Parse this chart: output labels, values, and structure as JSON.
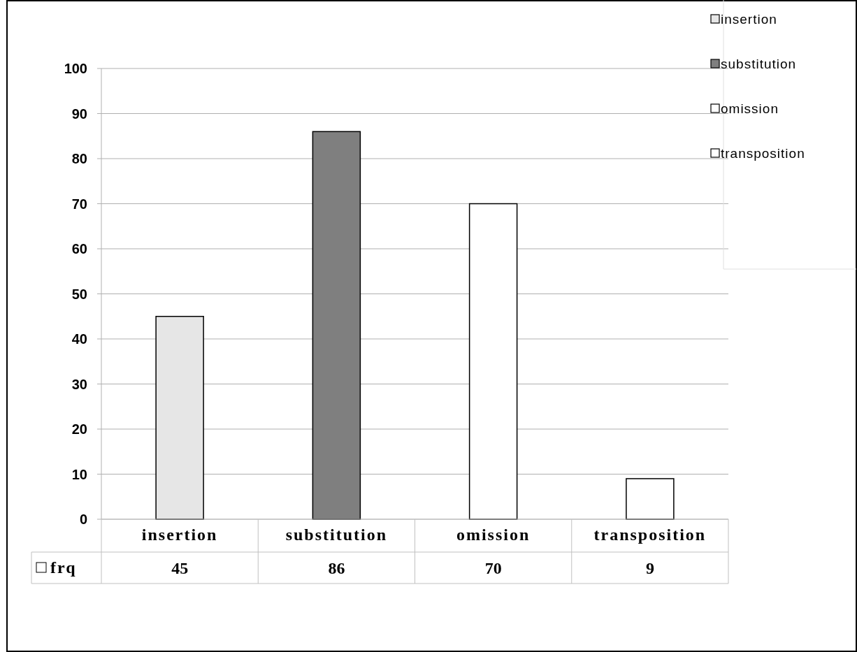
{
  "chart_data": {
    "type": "bar",
    "categories": [
      "insertion",
      "substitution",
      "omission",
      "transposition"
    ],
    "series": [
      {
        "name": "insertion",
        "color": "#e6e6e6",
        "values": [
          45,
          null,
          null,
          null
        ]
      },
      {
        "name": "substitution",
        "color": "#7f7f7f",
        "values": [
          null,
          86,
          null,
          null
        ]
      },
      {
        "name": "omission",
        "color": "#ffffff",
        "values": [
          null,
          null,
          70,
          null
        ]
      },
      {
        "name": "transposition",
        "color": "#ffffff",
        "values": [
          null,
          null,
          null,
          9
        ]
      }
    ],
    "annotations": [
      "frq"
    ],
    "ylim": [
      0,
      100
    ],
    "yticks": [
      0,
      10,
      20,
      30,
      40,
      50,
      60,
      70,
      80,
      90,
      100
    ],
    "grid": "y",
    "legend": "top right",
    "data_labels": true
  }
}
